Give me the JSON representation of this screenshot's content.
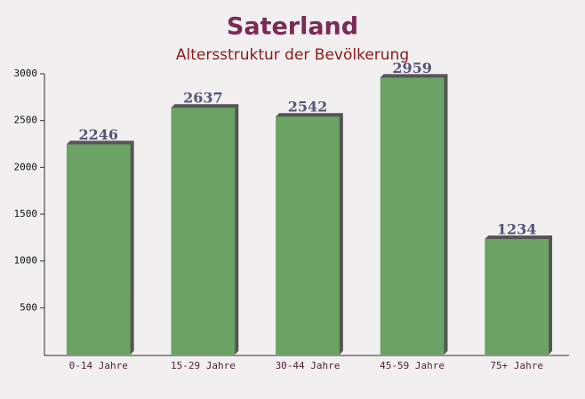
{
  "chart_data": {
    "type": "bar",
    "title": "Saterland",
    "subtitle": "Altersstruktur der Bevölkerung",
    "categories": [
      "0-14 Jahre",
      "15-29 Jahre",
      "30-44 Jahre",
      "45-59 Jahre",
      "75+ Jahre"
    ],
    "values": [
      2246,
      2637,
      2542,
      2959,
      1234
    ],
    "color": "#6aa364",
    "ylim": [
      0,
      3000
    ],
    "yticks": [
      500,
      1000,
      1500,
      2000,
      2500,
      3000
    ],
    "grid": false
  }
}
